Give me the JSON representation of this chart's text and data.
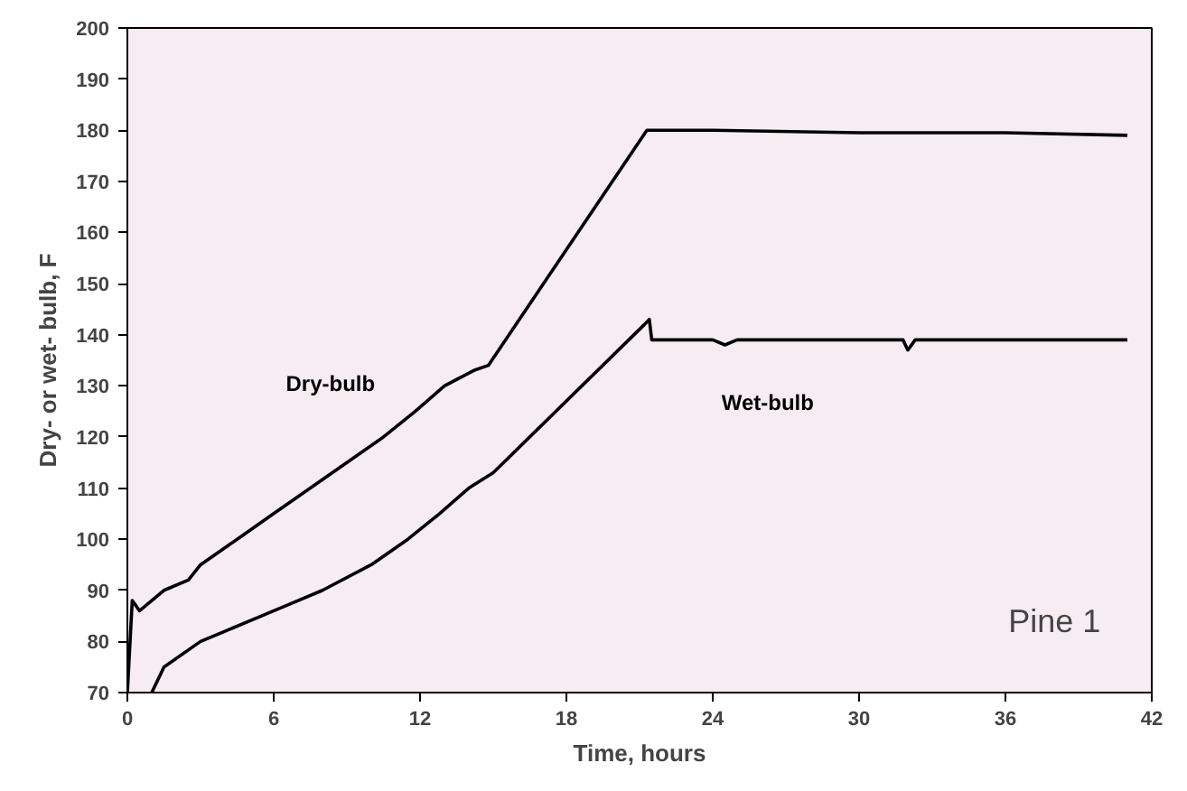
{
  "chart_data": {
    "type": "line",
    "xlabel": "Time, hours",
    "ylabel": "Dry- or wet- bulb, F",
    "xlim": [
      0,
      42
    ],
    "xticks": [
      0,
      6,
      12,
      18,
      24,
      30,
      36,
      42
    ],
    "ylim": [
      70,
      200
    ],
    "yticks": [
      70,
      80,
      90,
      100,
      110,
      120,
      130,
      140,
      150,
      160,
      170,
      180,
      190,
      200
    ],
    "grid": false,
    "marker": "none",
    "line_style": "solid",
    "annotations": [
      "Pine 1"
    ],
    "series": [
      {
        "name": "Dry-bulb",
        "color": "#000000",
        "x": [
          0,
          0.2,
          0.5,
          1.5,
          2.5,
          3,
          4.5,
          6,
          7.5,
          9,
          10.5,
          11.8,
          13,
          14.2,
          14.8,
          21.3,
          24,
          30,
          36,
          41
        ],
        "values": [
          70,
          88,
          86,
          90,
          92,
          95,
          100,
          105,
          110,
          115,
          120,
          125,
          130,
          133,
          134,
          180,
          180,
          179.5,
          179.5,
          179
        ]
      },
      {
        "name": "Wet-bulb",
        "color": "#000000",
        "x": [
          1,
          1.5,
          3,
          4,
          5.5,
          7,
          8,
          10,
          11.5,
          12.8,
          14,
          15,
          21.2,
          21.4,
          21.5,
          24,
          24.5,
          25,
          31.8,
          32,
          32.3,
          41
        ],
        "values": [
          70,
          75,
          80,
          82,
          85,
          88,
          90,
          95,
          100,
          105,
          110,
          113,
          142,
          143,
          139,
          139,
          138,
          139,
          139,
          137,
          139,
          139
        ]
      }
    ]
  }
}
